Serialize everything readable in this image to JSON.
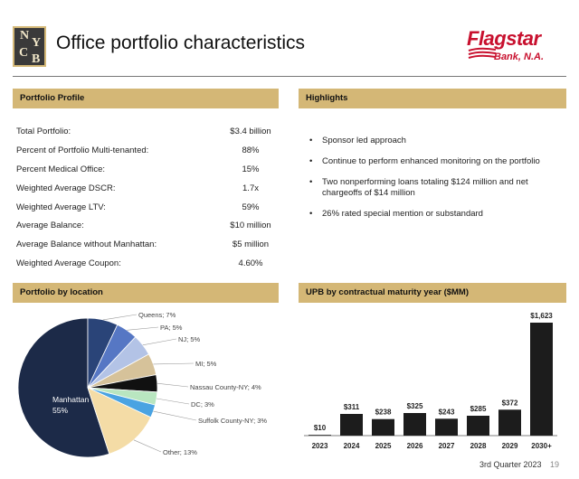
{
  "header": {
    "logo_letters": [
      "N",
      "Y",
      "C",
      "B"
    ],
    "title": "Office portfolio characteristics",
    "brand_name": "Flagstar",
    "brand_suffix": "Bank, N.A.",
    "brand_color": "#c8102e",
    "accent_color": "#d4b776"
  },
  "profile": {
    "heading": "Portfolio Profile",
    "rows": [
      {
        "label": "Total Portfolio:",
        "value": "$3.4 billion"
      },
      {
        "label": "Percent of Portfolio Multi-tenanted:",
        "value": "88%"
      },
      {
        "label": "Percent Medical Office:",
        "value": "15%"
      },
      {
        "label": "Weighted Average DSCR:",
        "value": "1.7x"
      },
      {
        "label": "Weighted Average LTV:",
        "value": "59%"
      },
      {
        "label": "Average Balance:",
        "value": "$10 million"
      },
      {
        "label": "Average Balance without Manhattan:",
        "value": "$5 million"
      },
      {
        "label": "Weighted Average Coupon:",
        "value": "4.60%"
      }
    ]
  },
  "highlights": {
    "heading": "Highlights",
    "items": [
      "Sponsor led approach",
      "Continue to perform enhanced monitoring on the portfolio",
      "Two nonperforming loans totaling $124 million and net chargeoffs of $14 million",
      "26% rated special mention or substandard"
    ]
  },
  "location": {
    "heading": "Portfolio by location"
  },
  "maturity": {
    "heading": "UPB by contractual maturity year ($MM)"
  },
  "chart_data": [
    {
      "type": "pie",
      "title": "Portfolio by location",
      "slices": [
        {
          "label": "Manhattan",
          "value": 55,
          "text": "Manhattan",
          "pct": "55%",
          "color": "#1c2a48"
        },
        {
          "label": "Queens",
          "value": 7,
          "text": "Queens; 7%",
          "color": "#2a4478"
        },
        {
          "label": "PA",
          "value": 5,
          "text": "PA; 5%",
          "color": "#5677c4"
        },
        {
          "label": "NJ",
          "value": 5,
          "text": "NJ; 5%",
          "color": "#b3c3e6"
        },
        {
          "label": "MI",
          "value": 5,
          "text": "MI; 5%",
          "color": "#d6c29a"
        },
        {
          "label": "Nassau County-NY",
          "value": 4,
          "text": "Nassau County-NY; 4%",
          "color": "#111111"
        },
        {
          "label": "DC",
          "value": 3,
          "text": "DC; 3%",
          "color": "#b9e6c0"
        },
        {
          "label": "Suffolk County-NY",
          "value": 3,
          "text": "Suffolk County-NY; 3%",
          "color": "#4aa3e2"
        },
        {
          "label": "Other",
          "value": 13,
          "text": "Other; 13%",
          "color": "#f4dca6"
        }
      ]
    },
    {
      "type": "bar",
      "title": "UPB by contractual maturity year ($MM)",
      "categories": [
        "2023",
        "2024",
        "2025",
        "2026",
        "2027",
        "2028",
        "2029",
        "2030+"
      ],
      "values": [
        10,
        311,
        238,
        325,
        243,
        285,
        372,
        1623
      ],
      "value_labels": [
        "$10",
        "$311",
        "$238",
        "$325",
        "$243",
        "$285",
        "$372",
        "$1,623"
      ],
      "ylim": [
        0,
        1623
      ],
      "bar_color": "#1c1c1c"
    }
  ],
  "footer": {
    "label": "3rd Quarter 2023",
    "page": "19"
  }
}
